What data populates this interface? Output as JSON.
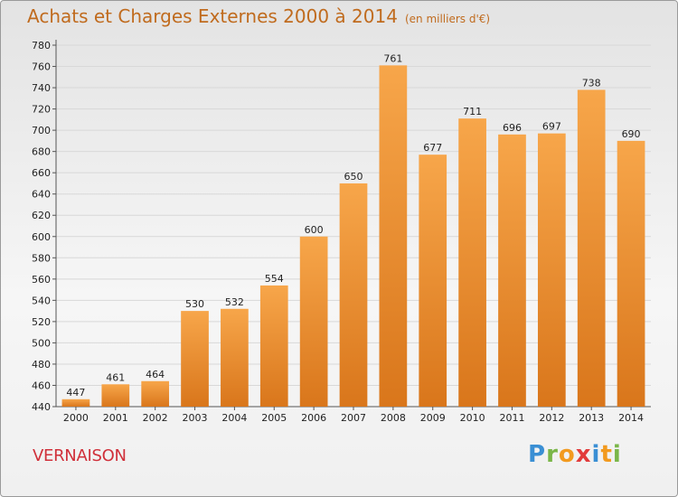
{
  "title": "Achats et Charges Externes 2000 à 2014",
  "subtitle": "(en milliers d'€)",
  "location": "VERNAISON",
  "logo": {
    "letters": [
      {
        "ch": "P",
        "color": "#3a8fd4"
      },
      {
        "ch": "r",
        "color": "#7ab648"
      },
      {
        "ch": "o",
        "color": "#f29a1f"
      },
      {
        "ch": "x",
        "color": "#e23b3b"
      },
      {
        "ch": "i",
        "color": "#3a8fd4"
      },
      {
        "ch": "t",
        "color": "#f29a1f"
      },
      {
        "ch": "i",
        "color": "#7ab648"
      }
    ]
  },
  "chart_data": {
    "type": "bar",
    "categories": [
      "2000",
      "2001",
      "2002",
      "2003",
      "2004",
      "2005",
      "2006",
      "2007",
      "2008",
      "2009",
      "2010",
      "2011",
      "2012",
      "2013",
      "2014"
    ],
    "values": [
      447,
      461,
      464,
      530,
      532,
      554,
      600,
      650,
      761,
      677,
      711,
      696,
      697,
      738,
      690
    ],
    "ylim": [
      440,
      780
    ],
    "ytick_step": 20,
    "grid": true,
    "bar_color": "#f0902e",
    "bar_color_dark": "#d9761b"
  }
}
